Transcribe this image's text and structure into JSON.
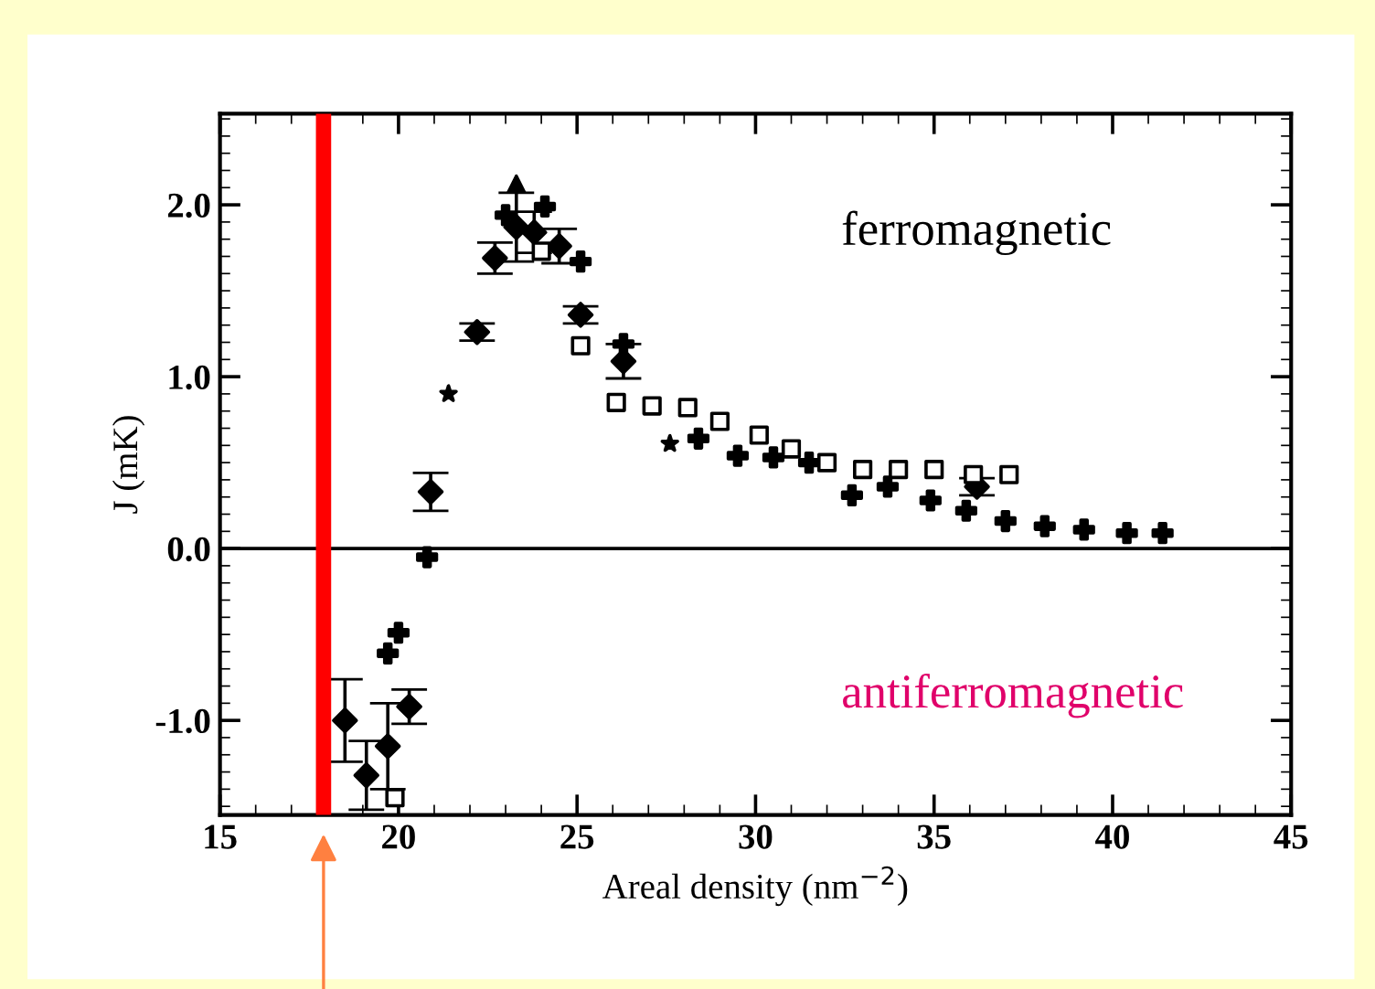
{
  "chart_data": {
    "type": "scatter",
    "xlabel": "Areal density (nm$^{−2}$)",
    "ylabel": "J (mK)",
    "xlim": [
      15,
      45
    ],
    "ylim": [
      -1.55,
      2.53
    ],
    "xticks": [
      15,
      20,
      25,
      30,
      35,
      40,
      45
    ],
    "yticks": [
      {
        "value": -1,
        "label": "-1.0"
      },
      {
        "value": 0,
        "label": "0.0"
      },
      {
        "value": 1,
        "label": "1.0"
      },
      {
        "value": 2,
        "label": "2.0"
      }
    ],
    "grid": false,
    "legend": false,
    "series": [
      {
        "color": "#000000",
        "marker": "diamond",
        "x": [
          18.5,
          19.1,
          19.7,
          20.3,
          20.9,
          22.2,
          22.7,
          23.3,
          23.8,
          24.5,
          25.1,
          26.3,
          36.2
        ],
        "values": [
          -1.0,
          -1.32,
          -1.15,
          -0.92,
          0.33,
          1.26,
          1.69,
          1.87,
          1.84,
          1.76,
          1.36,
          1.09,
          0.36
        ],
        "errors": [
          0.24,
          0.2,
          0.25,
          0.1,
          0.11,
          0.05,
          0.09,
          0.2,
          0.12,
          0.1,
          0.05,
          0.1,
          0.05
        ]
      },
      {
        "color": "#000000",
        "marker": "cross",
        "x": [
          19.7,
          20.0,
          20.8,
          23.0,
          24.1,
          25.1,
          26.3,
          28.4,
          29.5,
          30.5,
          31.5,
          32.7,
          33.7,
          34.9,
          35.9,
          37.0,
          38.1,
          39.2,
          40.4,
          41.4
        ],
        "values": [
          -0.61,
          -0.49,
          -0.05,
          1.94,
          1.99,
          1.67,
          1.19,
          0.64,
          0.54,
          0.53,
          0.5,
          0.31,
          0.36,
          0.28,
          0.22,
          0.16,
          0.13,
          0.11,
          0.09,
          0.09
        ]
      },
      {
        "color": "#000000",
        "marker": "square",
        "x": [
          19.9,
          24.0,
          25.1,
          26.1,
          27.1,
          28.1,
          29.0,
          30.1,
          31.0,
          32.0,
          33.0,
          34.0,
          35.0,
          36.1,
          37.1
        ],
        "values": [
          -1.45,
          1.73,
          1.18,
          0.85,
          0.83,
          0.82,
          0.74,
          0.66,
          0.58,
          0.5,
          0.46,
          0.46,
          0.46,
          0.43,
          0.43
        ]
      },
      {
        "color": "#000000",
        "marker": "triangle",
        "x": [
          23.3
        ],
        "values": [
          2.12
        ]
      },
      {
        "color": "#000000",
        "marker": "star",
        "x": [
          21.4,
          27.6
        ],
        "values": [
          0.9,
          0.61
        ]
      }
    ],
    "ref_lines": [
      {
        "axis": "y",
        "value": 0,
        "color": "#000000",
        "line_style": "solid"
      },
      {
        "axis": "x",
        "value": 17.9,
        "color": "#ff0000",
        "line_style": "solid"
      }
    ],
    "annotations": [
      "ferromagnetic",
      "antiferromagnetic"
    ]
  }
}
